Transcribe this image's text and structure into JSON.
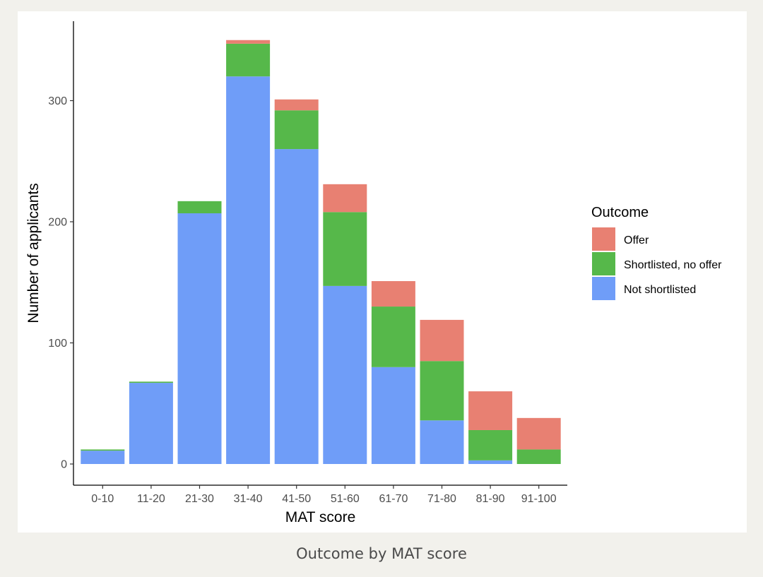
{
  "caption": "Outcome by MAT score",
  "chart_data": {
    "type": "bar",
    "stacked": true,
    "xlabel": "MAT score",
    "ylabel": "Number of applicants",
    "ylim": [
      0,
      360
    ],
    "yticks": [
      0,
      100,
      200,
      300
    ],
    "grid": false,
    "legend_position": "right",
    "categories": [
      "0-10",
      "11-20",
      "21-30",
      "31-40",
      "41-50",
      "51-60",
      "61-70",
      "71-80",
      "81-90",
      "91-100"
    ],
    "legend": {
      "title": "Outcome",
      "order": [
        "Offer",
        "Shortlisted, no offer",
        "Not shortlisted"
      ]
    },
    "series": [
      {
        "name": "Not shortlisted",
        "color": "#6f9df8",
        "values": [
          11,
          67,
          207,
          320,
          260,
          147,
          80,
          36,
          3,
          0
        ]
      },
      {
        "name": "Shortlisted, no offer",
        "color": "#56b84a",
        "values": [
          1,
          1,
          10,
          27,
          32,
          61,
          50,
          49,
          25,
          12
        ]
      },
      {
        "name": "Offer",
        "color": "#e88072",
        "values": [
          0,
          0,
          0,
          3,
          9,
          23,
          21,
          34,
          32,
          26
        ]
      }
    ]
  }
}
